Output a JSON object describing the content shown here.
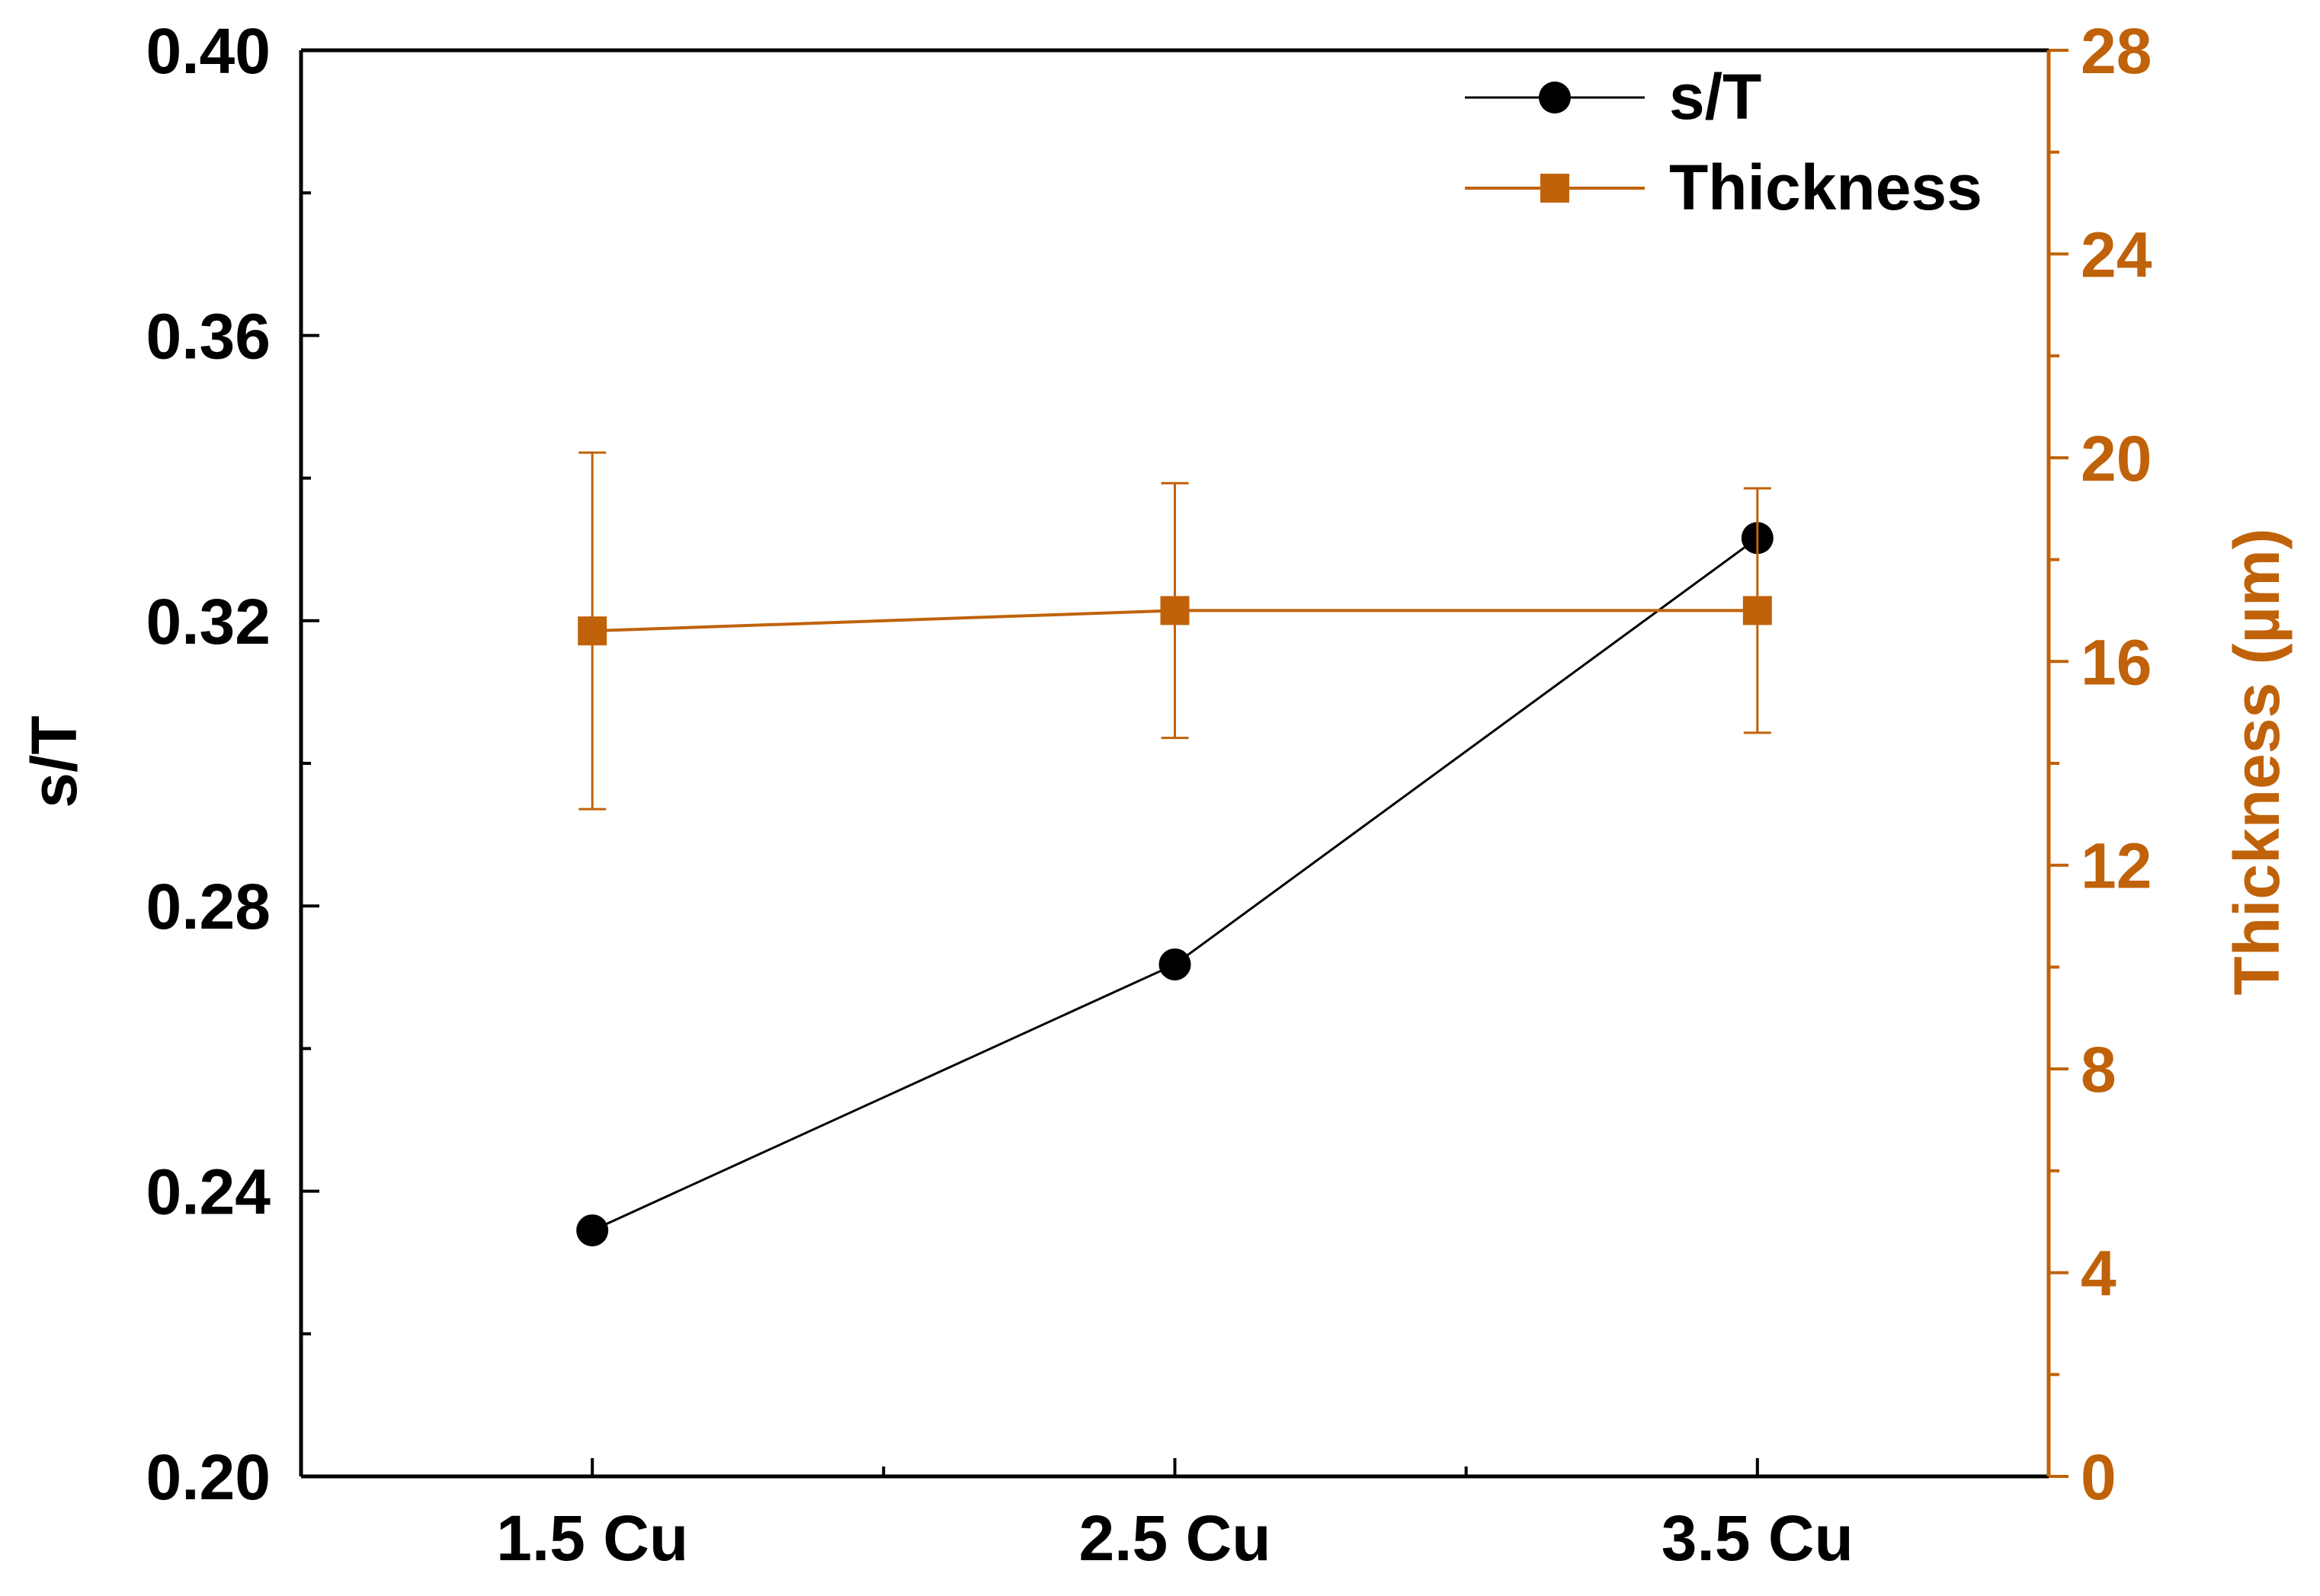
{
  "chart_data": {
    "type": "line",
    "categories": [
      "1.5 Cu",
      "2.5 Cu",
      "3.5 Cu"
    ],
    "xlim": [
      0.5,
      3.5
    ],
    "left_axis": {
      "label": "s/T",
      "ylim": [
        0.2,
        0.4
      ],
      "major_ticks": [
        0.2,
        0.24,
        0.28,
        0.32,
        0.36,
        0.4
      ],
      "tick_labels": [
        "0.20",
        "0.24",
        "0.28",
        "0.32",
        "0.36",
        "0.40"
      ],
      "minor_ticks": [
        0.22,
        0.26,
        0.3,
        0.34,
        0.38
      ]
    },
    "right_axis": {
      "label": "Thickness (µm)",
      "ylim": [
        0,
        28
      ],
      "major_ticks": [
        0,
        4,
        8,
        12,
        16,
        20,
        24,
        28
      ],
      "tick_labels": [
        "0",
        "4",
        "8",
        "12",
        "16",
        "20",
        "24",
        "28"
      ],
      "minor_ticks": [
        2,
        6,
        10,
        14,
        18,
        22,
        26
      ],
      "color": "#c0620a"
    },
    "series": [
      {
        "name": "s/T",
        "axis": "left",
        "marker": "circle",
        "color": "#000000",
        "values": [
          0.2345,
          0.2718,
          0.3316
        ]
      },
      {
        "name": "Thickness",
        "axis": "right",
        "marker": "square",
        "color": "#c0620a",
        "values": [
          16.6,
          17.0,
          17.0
        ],
        "error": [
          3.5,
          2.5,
          2.4
        ]
      }
    ],
    "legend": {
      "position": "top-right",
      "entries": [
        "s/T",
        "Thickness"
      ]
    },
    "grid": false
  }
}
